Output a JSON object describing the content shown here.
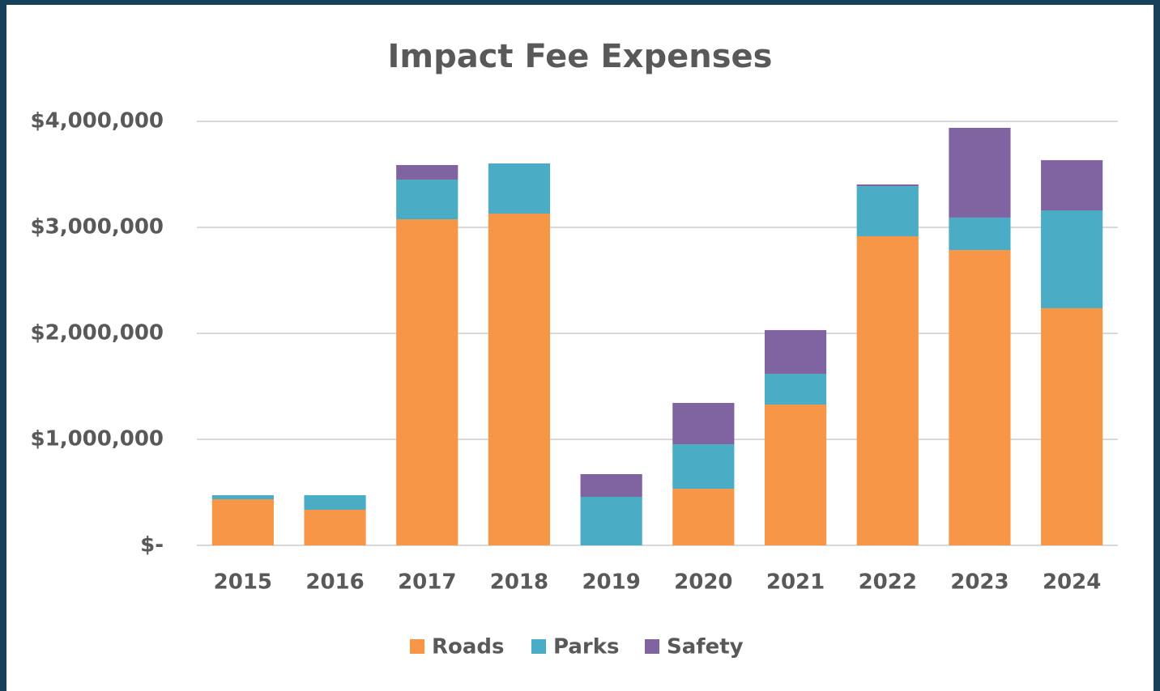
{
  "chart_data": {
    "type": "stacked_bar",
    "title": "Impact Fee Expenses",
    "categories": [
      "2015",
      "2016",
      "2017",
      "2018",
      "2019",
      "2020",
      "2021",
      "2022",
      "2023",
      "2024"
    ],
    "series": [
      {
        "name": "Roads",
        "color": "#f79646",
        "values": [
          435000,
          336000,
          3076000,
          3130000,
          0,
          534000,
          1328000,
          2916000,
          2786000,
          2237000
        ]
      },
      {
        "name": "Parks",
        "color": "#4bacc6",
        "values": [
          38000,
          137000,
          374000,
          473000,
          458000,
          420000,
          290000,
          473000,
          306000,
          923000
        ]
      },
      {
        "name": "Safety",
        "color": "#8064a2",
        "values": [
          0,
          0,
          138000,
          0,
          214000,
          390000,
          413000,
          16000,
          847000,
          474000
        ]
      }
    ],
    "ylim": [
      0,
      4000000
    ],
    "yticks": [
      {
        "value": 0,
        "label": "$-"
      },
      {
        "value": 1000000,
        "label": "$1,000,000"
      },
      {
        "value": 2000000,
        "label": "$2,000,000"
      },
      {
        "value": 3000000,
        "label": "$3,000,000"
      },
      {
        "value": 4000000,
        "label": "$4,000,000"
      }
    ],
    "grid": true
  }
}
